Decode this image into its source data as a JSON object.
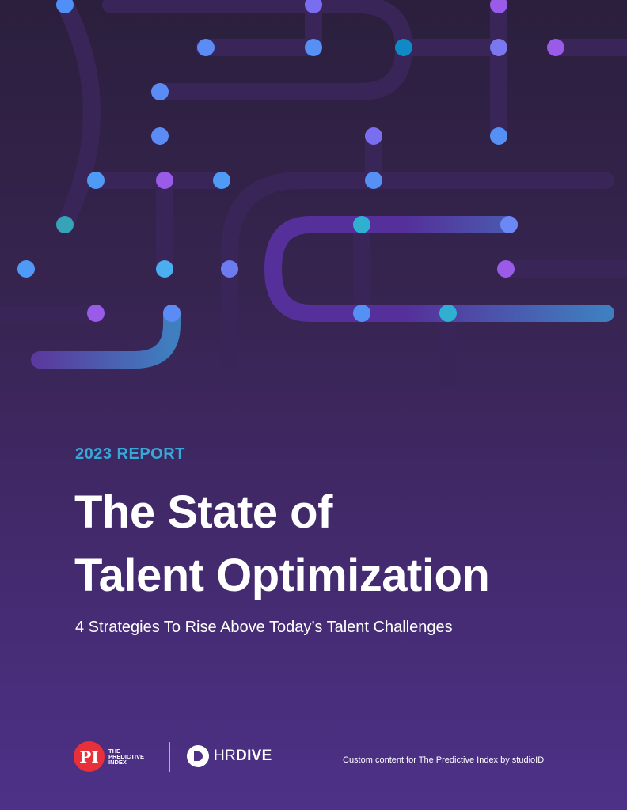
{
  "cover": {
    "eyebrow": "2023 REPORT",
    "title_line1": "The State of",
    "title_line2": "Talent Optimization",
    "subtitle": "4 Strategies To Rise Above Today’s Talent Challenges"
  },
  "footer": {
    "pi_logo_mark": "PI",
    "pi_logo_text": [
      "THE",
      "PREDICTIVE",
      "INDEX"
    ],
    "hrdive_light": "HR",
    "hrdive_bold": "DIVE",
    "credit": "Custom content for The Predictive Index by studioID"
  },
  "colors": {
    "accent": "#38a8d8",
    "pi_red": "#e8303a",
    "background_top": "#2b1f3d",
    "background_bottom": "#4d3188"
  }
}
